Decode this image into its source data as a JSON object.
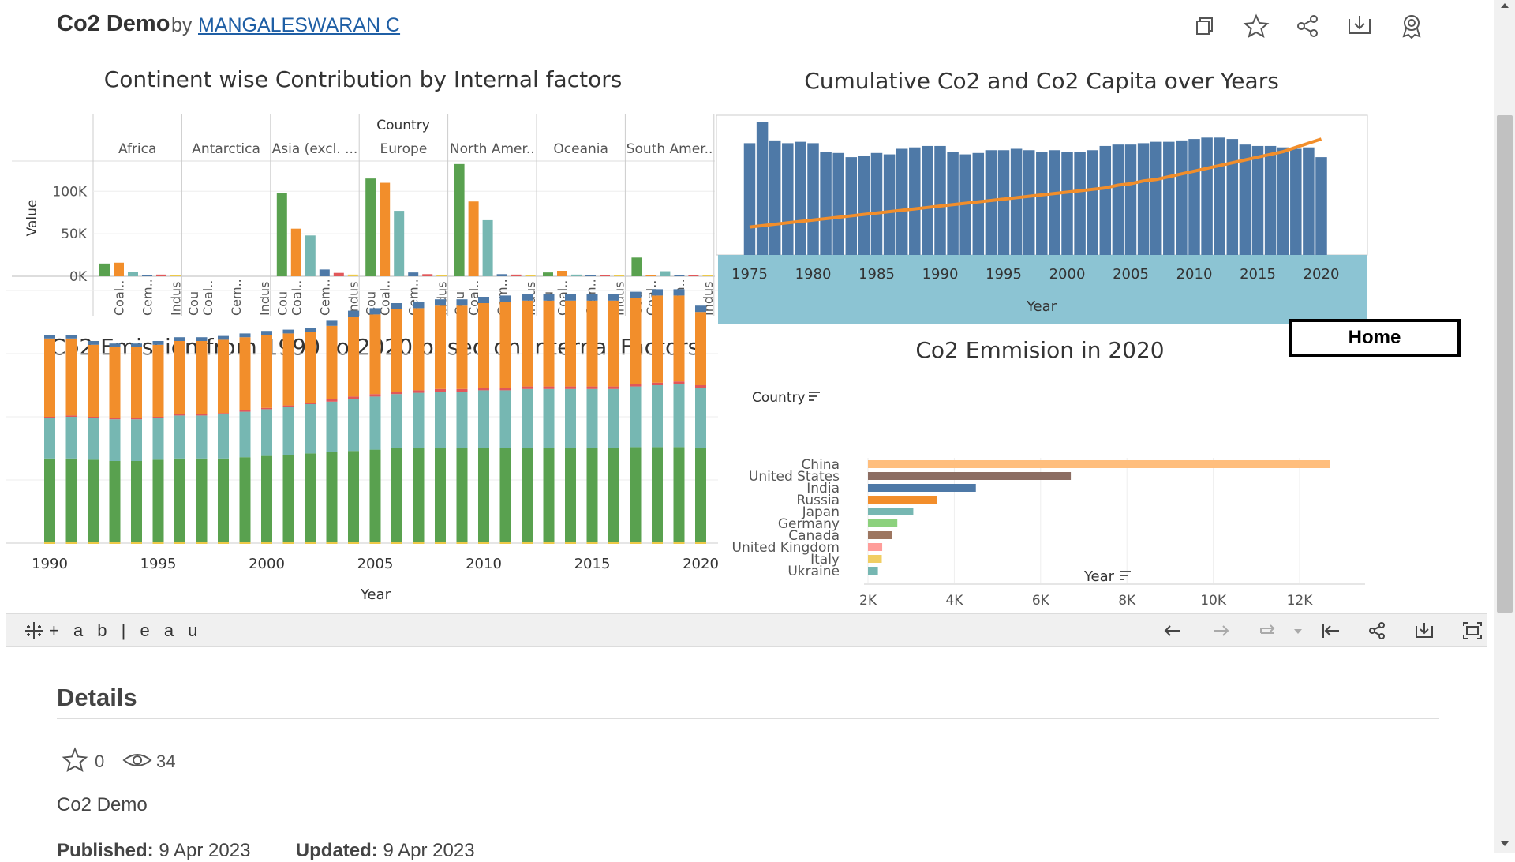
{
  "header": {
    "title": "Co2 Demo",
    "by": "by",
    "author": "MANGALESWARAN C",
    "icons": [
      "copy-icon",
      "star-icon",
      "share-icon",
      "download-icon",
      "badge-icon"
    ]
  },
  "home_button": {
    "label": "Home"
  },
  "toolbar": {
    "logo_text": "+ a b | e a u",
    "icons": [
      "undo-icon",
      "redo-icon",
      "revert-icon",
      "revert-dropdown-icon",
      "reset-icon",
      "share-icon",
      "download-icon",
      "fullscreen-icon"
    ]
  },
  "details": {
    "title": "Details",
    "favorites": "0",
    "views": "34",
    "description": "Co2 Demo",
    "published_label": "Published:",
    "published_value": "9 Apr 2023",
    "updated_label": "Updated:",
    "updated_value": "9 Apr 2023"
  },
  "colors": {
    "coal": "#59a14f",
    "oil": "#f28e2b",
    "gas": "#76b7b2",
    "cement": "#4e79a7",
    "flaring": "#e15759",
    "other": "#edc948",
    "bar_blue": "#4e79a7",
    "line_orange": "#f28e2b",
    "axis_band": "#8cc4d3"
  },
  "chart_data": [
    {
      "type": "bar",
      "title": "Continent wise Contribution by Internal factors",
      "column_header": "Country",
      "ylabel": "Value",
      "ylim": [
        0,
        130000
      ],
      "yticks": [
        "0K",
        "50K",
        "100K"
      ],
      "panels": [
        "Africa",
        "Antarctica",
        "Asia (excl. ...",
        "Europe",
        "North Amer..",
        "Oceania",
        "South Amer.."
      ],
      "categories": [
        "Cou",
        "Coal..",
        "Cem..",
        "Indus"
      ],
      "category_labels_by_panel": [
        [
          "Coal..",
          "Cem..",
          "Indus"
        ],
        [
          "Cou",
          "Coal..",
          "Cem..",
          "Indus"
        ],
        [
          "Cou",
          "Coal..",
          "Cem..",
          "Indus"
        ],
        [
          "Cou",
          "Coal..",
          "Cem..",
          "Indus"
        ],
        [
          "Cou",
          "Coal..",
          "Cem..",
          "Indus"
        ],
        [
          "Cou",
          "Coal..",
          "Cem..",
          "Indus"
        ],
        [
          "Cou",
          "Coal..",
          "Cem..",
          "Indus"
        ]
      ],
      "series_colors": [
        "#59a14f",
        "#f28e2b",
        "#76b7b2",
        "#4e79a7",
        "#e15759",
        "#edc948"
      ],
      "values": [
        [
          15000,
          16000,
          5000,
          1500,
          2000,
          500
        ],
        [
          0,
          0,
          0,
          0,
          0,
          0
        ],
        [
          98000,
          56000,
          48000,
          8000,
          4000,
          2000
        ],
        [
          115000,
          110000,
          77000,
          4500,
          2500,
          1500
        ],
        [
          132000,
          88000,
          66000,
          2500,
          2000,
          1000
        ],
        [
          4500,
          6500,
          2000,
          500,
          300,
          200
        ],
        [
          22000,
          1500,
          6000,
          800,
          1200,
          300
        ]
      ]
    },
    {
      "type": "bar",
      "title": "Cumulative Co2 and Co2 Capita over Years",
      "xlabel": "Year",
      "x_ticks": [
        "1975",
        "1980",
        "1985",
        "1990",
        "1995",
        "2000",
        "2005",
        "2010",
        "2015",
        "2020"
      ],
      "years": [
        1975,
        1976,
        1977,
        1978,
        1979,
        1980,
        1981,
        1982,
        1983,
        1984,
        1985,
        1986,
        1987,
        1988,
        1989,
        1990,
        1991,
        1992,
        1993,
        1994,
        1995,
        1996,
        1997,
        1998,
        1999,
        2000,
        2001,
        2002,
        2003,
        2004,
        2005,
        2006,
        2007,
        2008,
        2009,
        2010,
        2011,
        2012,
        2013,
        2014,
        2015,
        2016,
        2017,
        2018,
        2019,
        2020
      ],
      "bar_values": [
        0.8,
        0.95,
        0.82,
        0.8,
        0.81,
        0.8,
        0.74,
        0.73,
        0.7,
        0.71,
        0.73,
        0.72,
        0.76,
        0.77,
        0.78,
        0.78,
        0.74,
        0.72,
        0.73,
        0.75,
        0.75,
        0.76,
        0.75,
        0.74,
        0.75,
        0.74,
        0.74,
        0.75,
        0.78,
        0.79,
        0.79,
        0.8,
        0.81,
        0.81,
        0.82,
        0.83,
        0.84,
        0.84,
        0.83,
        0.79,
        0.78,
        0.78,
        0.77,
        0.76,
        0.77,
        0.7
      ],
      "line_values": [
        0.2,
        0.21,
        0.22,
        0.23,
        0.24,
        0.25,
        0.26,
        0.27,
        0.28,
        0.29,
        0.3,
        0.31,
        0.32,
        0.33,
        0.34,
        0.35,
        0.36,
        0.37,
        0.38,
        0.39,
        0.4,
        0.41,
        0.42,
        0.43,
        0.44,
        0.45,
        0.46,
        0.47,
        0.48,
        0.5,
        0.51,
        0.53,
        0.54,
        0.56,
        0.58,
        0.6,
        0.62,
        0.64,
        0.66,
        0.68,
        0.7,
        0.72,
        0.74,
        0.77,
        0.8,
        0.83
      ],
      "ylim": [
        0,
        1
      ]
    },
    {
      "type": "bar",
      "title": "Co2 Emission from 1990 to 2020 based on Internal Factors",
      "xlabel": "Year",
      "x_ticks": [
        "1990",
        "1995",
        "2000",
        "2005",
        "2010",
        "2015",
        "2020"
      ],
      "years": [
        1990,
        1991,
        1992,
        1993,
        1994,
        1995,
        1996,
        1997,
        1998,
        1999,
        2000,
        2001,
        2002,
        2003,
        2004,
        2005,
        2006,
        2007,
        2008,
        2009,
        2010,
        2011,
        2012,
        2013,
        2014,
        2015,
        2016,
        2017,
        2018,
        2019,
        2020
      ],
      "ylim": [
        0,
        200
      ],
      "series": [
        {
          "color": "#59a14f",
          "values": [
            67,
            67,
            66,
            65,
            65,
            66,
            67,
            67,
            67,
            68,
            69,
            70,
            71,
            72,
            73,
            74,
            75,
            75,
            75,
            75,
            75,
            75,
            75,
            75,
            75,
            75,
            75,
            76,
            76,
            76,
            75
          ]
        },
        {
          "color": "#76b7b2",
          "values": [
            32,
            33,
            33,
            33,
            33,
            33,
            34,
            34,
            35,
            36,
            37,
            38,
            39,
            40,
            41,
            42,
            43,
            44,
            45,
            45,
            46,
            46,
            47,
            47,
            47,
            47,
            47,
            48,
            49,
            50,
            48
          ]
        },
        {
          "color": "#e15759",
          "values": [
            1,
            1,
            1,
            1,
            1,
            1,
            1,
            1,
            1,
            1,
            1,
            1,
            1,
            2,
            2,
            2,
            2,
            2,
            2,
            2,
            2,
            2,
            2,
            2,
            2,
            2,
            2,
            2,
            2,
            2,
            2
          ]
        },
        {
          "color": "#f28e2b",
          "values": [
            62,
            61,
            57,
            56,
            56,
            57,
            58,
            58,
            58,
            58,
            58,
            57,
            56,
            58,
            63,
            63,
            65,
            65,
            66,
            66,
            67,
            68,
            68,
            68,
            68,
            68,
            68,
            68,
            69,
            68,
            58
          ]
        },
        {
          "color": "#4e79a7",
          "values": [
            3,
            3,
            3,
            3,
            3,
            3,
            3,
            3,
            3,
            3,
            3,
            3,
            3,
            4,
            5,
            5,
            5,
            5,
            5,
            5,
            5,
            5,
            5,
            5,
            5,
            5,
            5,
            5,
            5,
            5,
            5
          ]
        }
      ]
    },
    {
      "type": "bar",
      "title": "Co2 Emmision in 2020",
      "orientation": "horizontal",
      "row_header": "Country",
      "xlabel": "Year",
      "x_ticks": [
        "2K",
        "4K",
        "6K",
        "8K",
        "10K",
        "12K"
      ],
      "xlim": [
        2000,
        13000
      ],
      "categories": [
        "China",
        "United States",
        "India",
        "Russia",
        "Japan",
        "Germany",
        "Canada",
        "United Kingdom",
        "Italy",
        "Ukraine"
      ],
      "values": [
        12700,
        6700,
        4500,
        3600,
        3050,
        2680,
        2560,
        2330,
        2320,
        2230
      ],
      "colors": [
        "#ffbe7d",
        "#8c6d62",
        "#4e79a7",
        "#f28e2b",
        "#76b7b2",
        "#8cd17d",
        "#9d7660",
        "#ff9d9a",
        "#f1ce63",
        "#76b7b2"
      ]
    }
  ]
}
